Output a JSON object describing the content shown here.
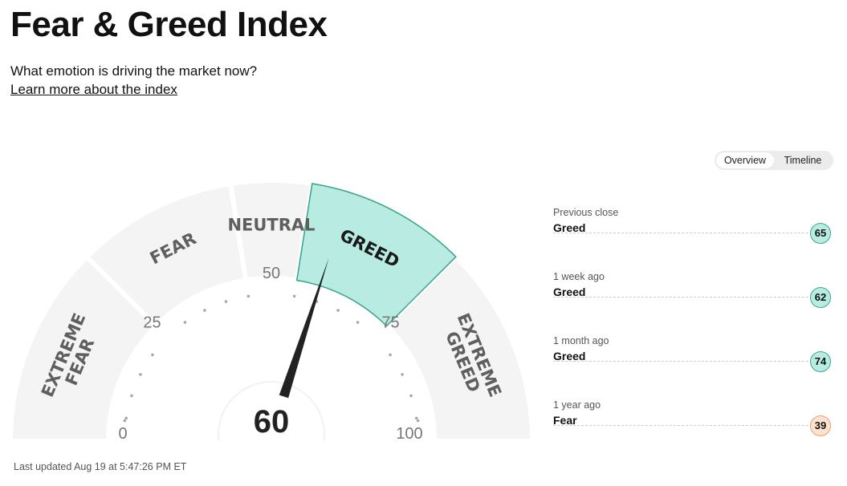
{
  "header": {
    "title": "Fear & Greed Index",
    "subtitle": "What emotion is driving the market now?",
    "learn_more": "Learn more about the index"
  },
  "tabs": [
    {
      "label": "Overview",
      "active": true
    },
    {
      "label": "Timeline",
      "active": false
    }
  ],
  "gauge": {
    "score": "60",
    "score_value": 60,
    "segments": [
      {
        "label": "EXTREME FEAR",
        "line1": "EXTREME",
        "line2": "FEAR",
        "from": 0,
        "to": 25
      },
      {
        "label": "FEAR",
        "line1": "FEAR",
        "line2": "",
        "from": 25,
        "to": 45
      },
      {
        "label": "NEUTRAL",
        "line1": "NEUTRAL",
        "line2": "",
        "from": 45,
        "to": 55
      },
      {
        "label": "GREED",
        "line1": "GREED",
        "line2": "",
        "from": 55,
        "to": 75
      },
      {
        "label": "EXTREME GREED",
        "line1": "EXTREME",
        "line2": "GREED",
        "from": 75,
        "to": 100
      }
    ],
    "active_segment": "GREED",
    "tick_labels": [
      "0",
      "25",
      "50",
      "75",
      "100"
    ],
    "colors": {
      "segment_bg": "#f4f4f4",
      "active_fill": "#b8ece3",
      "active_stroke": "#3fa58c",
      "needle": "#222222",
      "dots": "#a8a8a8"
    }
  },
  "last_updated": "Last updated Aug 19 at 5:47:26 PM ET",
  "history": [
    {
      "period": "Previous close",
      "rating": "Greed",
      "value": "65",
      "color": "#b8ece3",
      "border": "#3fa58c"
    },
    {
      "period": "1 week ago",
      "rating": "Greed",
      "value": "62",
      "color": "#b8ece3",
      "border": "#3fa58c"
    },
    {
      "period": "1 month ago",
      "rating": "Greed",
      "value": "74",
      "color": "#b8ece3",
      "border": "#3fa58c"
    },
    {
      "period": "1 year ago",
      "rating": "Fear",
      "value": "39",
      "color": "#fde3cf",
      "border": "#e8a06f"
    }
  ]
}
